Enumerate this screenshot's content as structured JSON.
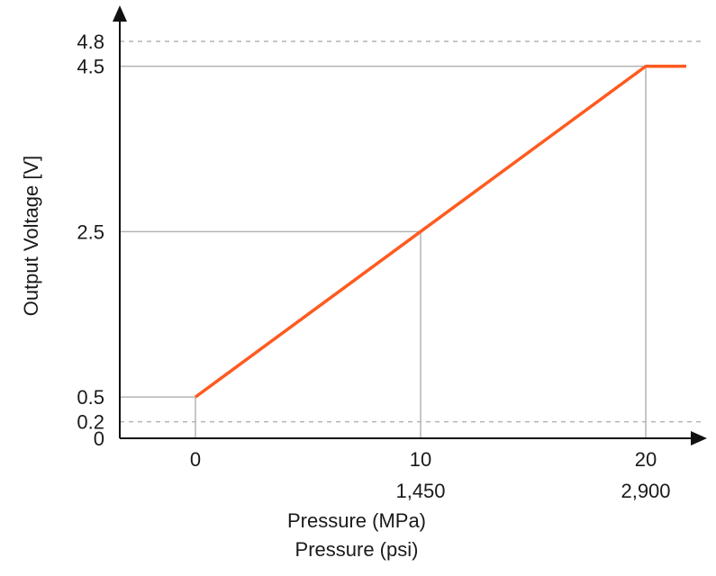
{
  "chart_data": {
    "type": "line",
    "title": "",
    "xlabel": "Pressure (MPa)",
    "xlabel_secondary": "Pressure (psi)",
    "ylabel": "Output Voltage [V]",
    "xlim": [
      -3.5,
      21.8
    ],
    "ylim": [
      0,
      4.8
    ],
    "grid": false,
    "x_ticks": [
      {
        "value": 0,
        "label": "0",
        "psi": ""
      },
      {
        "value": 10,
        "label": "10",
        "psi": "1,450"
      },
      {
        "value": 20,
        "label": "20",
        "psi": "2,900"
      }
    ],
    "y_ticks": [
      {
        "value": 0,
        "label": "0"
      },
      {
        "value": 0.2,
        "label": "0.2",
        "dashed": true
      },
      {
        "value": 0.5,
        "label": "0.5"
      },
      {
        "value": 2.5,
        "label": "2.5"
      },
      {
        "value": 4.5,
        "label": "4.5"
      },
      {
        "value": 4.8,
        "label": "4.8",
        "dashed": true
      }
    ],
    "series": [
      {
        "color": "#ff5a1f",
        "x": [
          0,
          10,
          20,
          21.8
        ],
        "y": [
          0.5,
          2.5,
          4.5,
          4.5
        ]
      }
    ],
    "guide_color": "#b4b4b4"
  }
}
